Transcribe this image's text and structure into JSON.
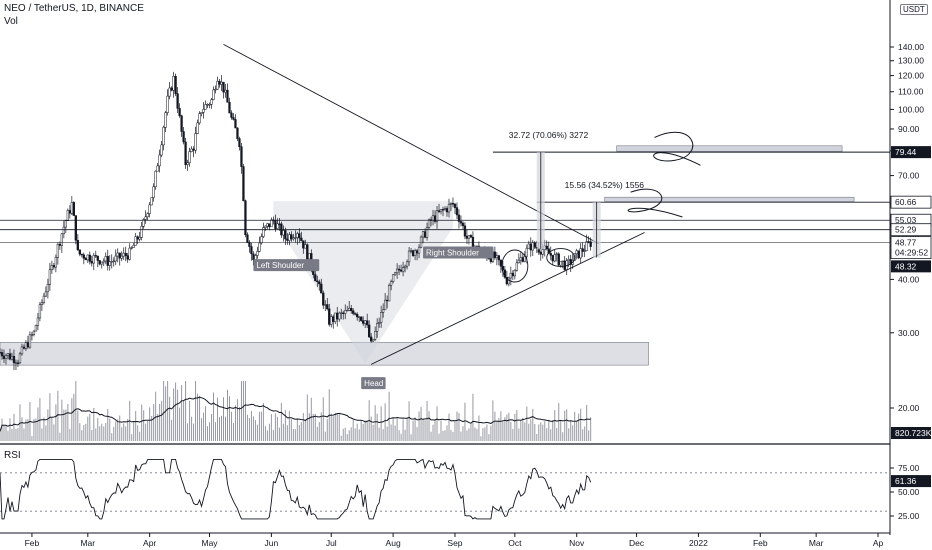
{
  "header": {
    "symbol_line": "NEO / TetherUS, 1D, BINANCE",
    "volume_label": "Vol"
  },
  "currency_button": "USDT",
  "rsi_label": "RSI",
  "chart_data": [
    {
      "type": "candlestick",
      "title": "NEO / TetherUS, 1D, BINANCE",
      "y_scale": "log",
      "ylim": [
        17,
        160
      ],
      "y_ticks": [
        20,
        30,
        40,
        50,
        60,
        70,
        80,
        90,
        100,
        110,
        120,
        130,
        140
      ],
      "y_tick_labels": [
        "20.00",
        "30.00",
        "40.00",
        "50.00",
        "60.00",
        "70.00",
        "80.00",
        "90.00",
        "100.00",
        "110.00",
        "120.00",
        "130.00",
        "140.00"
      ],
      "x_tick_labels": [
        "Feb",
        "Mar",
        "Apr",
        "May",
        "Jun",
        "Jul",
        "Aug",
        "Sep",
        "Oct",
        "Nov",
        "Dec",
        "2022",
        "Feb",
        "Mar",
        "Ap"
      ],
      "x_range": [
        "2021-01-16",
        "2022-04-06"
      ],
      "price_path": [
        [
          "2021-01-16",
          27
        ],
        [
          "2021-01-25",
          26
        ],
        [
          "2021-02-02",
          30
        ],
        [
          "2021-02-08",
          38
        ],
        [
          "2021-02-12",
          44
        ],
        [
          "2021-02-18",
          55
        ],
        [
          "2021-02-21",
          60
        ],
        [
          "2021-02-24",
          46
        ],
        [
          "2021-03-03",
          45
        ],
        [
          "2021-03-12",
          44
        ],
        [
          "2021-03-22",
          46
        ],
        [
          "2021-03-28",
          52
        ],
        [
          "2021-04-03",
          65
        ],
        [
          "2021-04-07",
          85
        ],
        [
          "2021-04-10",
          105
        ],
        [
          "2021-04-13",
          118
        ],
        [
          "2021-04-16",
          95
        ],
        [
          "2021-04-19",
          75
        ],
        [
          "2021-04-23",
          82
        ],
        [
          "2021-04-27",
          100
        ],
        [
          "2021-05-02",
          105
        ],
        [
          "2021-05-05",
          120
        ],
        [
          "2021-05-08",
          112
        ],
        [
          "2021-05-12",
          95
        ],
        [
          "2021-05-16",
          84
        ],
        [
          "2021-05-19",
          52
        ],
        [
          "2021-05-23",
          44
        ],
        [
          "2021-05-28",
          52
        ],
        [
          "2021-06-02",
          55
        ],
        [
          "2021-06-08",
          50
        ],
        [
          "2021-06-14",
          52
        ],
        [
          "2021-06-19",
          46
        ],
        [
          "2021-06-25",
          38
        ],
        [
          "2021-06-30",
          32
        ],
        [
          "2021-07-06",
          33
        ],
        [
          "2021-07-12",
          34
        ],
        [
          "2021-07-18",
          32
        ],
        [
          "2021-07-21",
          28
        ],
        [
          "2021-07-26",
          33
        ],
        [
          "2021-08-01",
          40
        ],
        [
          "2021-08-08",
          45
        ],
        [
          "2021-08-14",
          48
        ],
        [
          "2021-08-20",
          55
        ],
        [
          "2021-08-26",
          58
        ],
        [
          "2021-08-31",
          60
        ],
        [
          "2021-09-03",
          56
        ],
        [
          "2021-09-07",
          50
        ],
        [
          "2021-09-14",
          46
        ],
        [
          "2021-09-21",
          45
        ],
        [
          "2021-09-27",
          40
        ],
        [
          "2021-10-03",
          44
        ],
        [
          "2021-10-09",
          48
        ],
        [
          "2021-10-15",
          47
        ],
        [
          "2021-10-21",
          45
        ],
        [
          "2021-10-27",
          43
        ],
        [
          "2021-11-02",
          46
        ],
        [
          "2021-11-08",
          48.77
        ]
      ],
      "last_price": "48.77",
      "countdown": "04:29:52"
    },
    {
      "type": "bar",
      "title": "Vol",
      "last_value_label": "820.723K",
      "moving_average_series": true
    },
    {
      "type": "line",
      "title": "RSI",
      "ylim": [
        20,
        85
      ],
      "y_ticks": [
        25,
        50,
        75
      ],
      "y_tick_labels": [
        "25.00",
        "50.00",
        "75.00"
      ],
      "bands": [
        30,
        70
      ],
      "last_value_label": "61.36"
    }
  ],
  "annotations": {
    "head_and_shoulders": {
      "left_shoulder": "Left Shoulder",
      "head": "Head",
      "right_shoulder": "Right Shoulder"
    },
    "measurements": [
      {
        "label": "32.72 (70.06%) 3272"
      },
      {
        "label": "15.56 (34.52%) 1556"
      }
    ],
    "price_levels": [
      {
        "label": "79.44",
        "value": 79.44,
        "style": "dark"
      },
      {
        "label": "60.66",
        "value": 60.66,
        "style": "light"
      },
      {
        "label": "55.03",
        "value": 55.03,
        "style": "light"
      },
      {
        "label": "52.29",
        "value": 52.29,
        "style": "light"
      },
      {
        "label": "48.77",
        "value": 48.77,
        "style": "current"
      },
      {
        "label": "48.32",
        "value": 48.32,
        "style": "dark"
      }
    ]
  },
  "colors": {
    "up": "#26a69a",
    "down": "#131722",
    "candle": "#131722",
    "annotation": "#131722",
    "box": "#d1d4dc"
  }
}
